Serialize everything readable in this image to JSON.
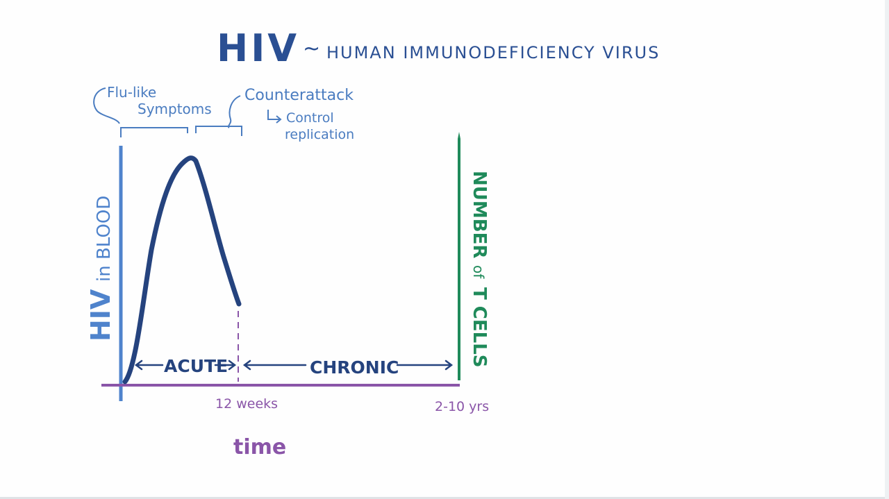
{
  "title": {
    "acronym": "HIV",
    "tilde": "~",
    "full_name": "HUMAN IMMUNODEFICIENCY VIRUS"
  },
  "annotations": {
    "flu_like_line1": "Flu-like",
    "flu_like_line2": "Symptoms",
    "counterattack": "Counterattack",
    "control_line1": "Control",
    "control_line2": "replication"
  },
  "axes": {
    "y_left_main": "HIV",
    "y_left_rest": "in BLOOD",
    "y_right_part1": "NUMBER",
    "y_right_part2": "of",
    "y_right_part3": "T CELLS",
    "x_label": "time",
    "tick_12_weeks": "12 weeks",
    "tick_2_10_yrs": "2-10 yrs"
  },
  "phases": {
    "acute": "ACUTE",
    "chronic": "CHRONIC"
  },
  "colors": {
    "title_blue": "#2a4f93",
    "annotation_blue": "#4a7cc0",
    "left_axis_blue": "#4f83cc",
    "curve_navy": "#25437e",
    "x_axis_purple": "#8a55a8",
    "t_cell_green": "#1f8a5a"
  }
}
